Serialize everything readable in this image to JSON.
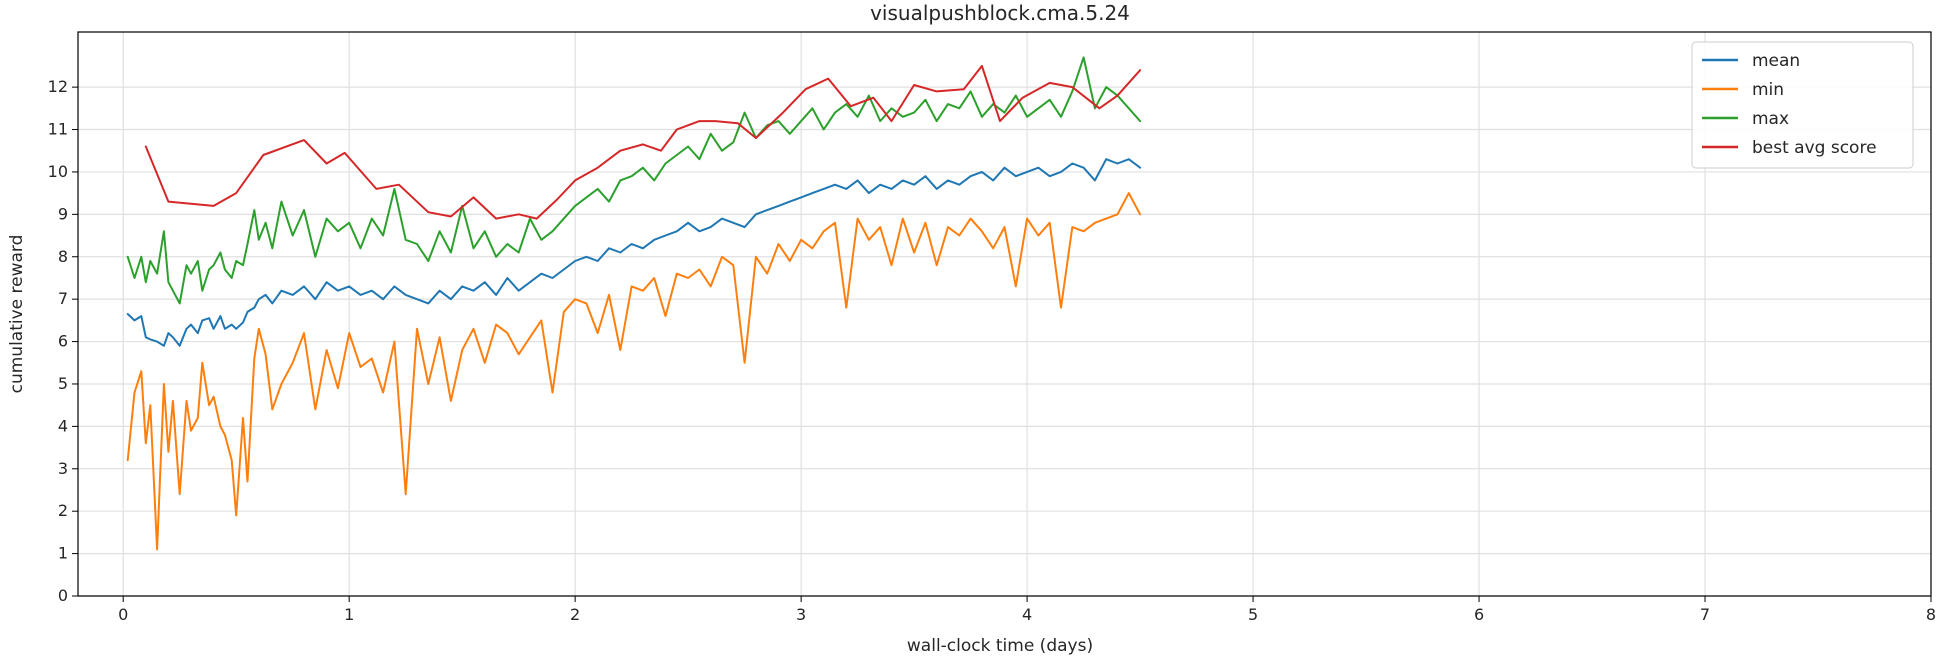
{
  "chart_data": {
    "type": "line",
    "title": "visualpushblock.cma.5.24",
    "xlabel": "wall-clock time (days)",
    "ylabel": "cumulative reward",
    "xlim": [
      -0.2,
      8
    ],
    "ylim": [
      0,
      13.3
    ],
    "xticks": [
      0,
      1,
      2,
      3,
      4,
      5,
      6,
      7,
      8
    ],
    "yticks": [
      0,
      1,
      2,
      3,
      4,
      5,
      6,
      7,
      8,
      9,
      10,
      11,
      12
    ],
    "grid": true,
    "legend_position": "top-right",
    "series": [
      {
        "name": "mean",
        "color": "#1f77b4",
        "x": [
          0.02,
          0.05,
          0.08,
          0.1,
          0.12,
          0.15,
          0.18,
          0.2,
          0.22,
          0.25,
          0.28,
          0.3,
          0.33,
          0.35,
          0.38,
          0.4,
          0.43,
          0.45,
          0.48,
          0.5,
          0.53,
          0.55,
          0.58,
          0.6,
          0.63,
          0.66,
          0.7,
          0.75,
          0.8,
          0.85,
          0.9,
          0.95,
          1.0,
          1.05,
          1.1,
          1.15,
          1.2,
          1.25,
          1.3,
          1.35,
          1.4,
          1.45,
          1.5,
          1.55,
          1.6,
          1.65,
          1.7,
          1.75,
          1.8,
          1.85,
          1.9,
          1.95,
          2.0,
          2.05,
          2.1,
          2.15,
          2.2,
          2.25,
          2.3,
          2.35,
          2.4,
          2.45,
          2.5,
          2.55,
          2.6,
          2.65,
          2.7,
          2.75,
          2.8,
          2.85,
          2.9,
          2.95,
          3.0,
          3.05,
          3.1,
          3.15,
          3.2,
          3.25,
          3.3,
          3.35,
          3.4,
          3.45,
          3.5,
          3.55,
          3.6,
          3.65,
          3.7,
          3.75,
          3.8,
          3.85,
          3.9,
          3.95,
          4.0,
          4.05,
          4.1,
          4.15,
          4.2,
          4.25,
          4.3,
          4.35,
          4.4,
          4.45,
          4.5
        ],
        "y": [
          6.65,
          6.5,
          6.6,
          6.1,
          6.05,
          6.0,
          5.9,
          6.2,
          6.1,
          5.9,
          6.3,
          6.4,
          6.2,
          6.5,
          6.55,
          6.3,
          6.6,
          6.3,
          6.4,
          6.3,
          6.45,
          6.7,
          6.8,
          7.0,
          7.1,
          6.9,
          7.2,
          7.1,
          7.3,
          7.0,
          7.4,
          7.2,
          7.3,
          7.1,
          7.2,
          7.0,
          7.3,
          7.1,
          7.0,
          6.9,
          7.2,
          7.0,
          7.3,
          7.2,
          7.4,
          7.1,
          7.5,
          7.2,
          7.4,
          7.6,
          7.5,
          7.7,
          7.9,
          8.0,
          7.9,
          8.2,
          8.1,
          8.3,
          8.2,
          8.4,
          8.5,
          8.6,
          8.8,
          8.6,
          8.7,
          8.9,
          8.8,
          8.7,
          9.0,
          9.1,
          9.2,
          9.3,
          9.4,
          9.5,
          9.6,
          9.7,
          9.6,
          9.8,
          9.5,
          9.7,
          9.6,
          9.8,
          9.7,
          9.9,
          9.6,
          9.8,
          9.7,
          9.9,
          10.0,
          9.8,
          10.1,
          9.9,
          10.0,
          10.1,
          9.9,
          10.0,
          10.2,
          10.1,
          9.8,
          10.3,
          10.2,
          10.3,
          10.1
        ]
      },
      {
        "name": "min",
        "color": "#ff7f0e",
        "x": [
          0.02,
          0.05,
          0.08,
          0.1,
          0.12,
          0.15,
          0.18,
          0.2,
          0.22,
          0.25,
          0.28,
          0.3,
          0.33,
          0.35,
          0.38,
          0.4,
          0.43,
          0.45,
          0.48,
          0.5,
          0.53,
          0.55,
          0.58,
          0.6,
          0.63,
          0.66,
          0.7,
          0.75,
          0.8,
          0.85,
          0.9,
          0.95,
          1.0,
          1.05,
          1.1,
          1.15,
          1.2,
          1.25,
          1.3,
          1.35,
          1.4,
          1.45,
          1.5,
          1.55,
          1.6,
          1.65,
          1.7,
          1.75,
          1.8,
          1.85,
          1.9,
          1.95,
          2.0,
          2.05,
          2.1,
          2.15,
          2.2,
          2.25,
          2.3,
          2.35,
          2.4,
          2.45,
          2.5,
          2.55,
          2.6,
          2.65,
          2.7,
          2.75,
          2.8,
          2.85,
          2.9,
          2.95,
          3.0,
          3.05,
          3.1,
          3.15,
          3.2,
          3.25,
          3.3,
          3.35,
          3.4,
          3.45,
          3.5,
          3.55,
          3.6,
          3.65,
          3.7,
          3.75,
          3.8,
          3.85,
          3.9,
          3.95,
          4.0,
          4.05,
          4.1,
          4.15,
          4.2,
          4.25,
          4.3,
          4.35,
          4.4,
          4.45,
          4.5
        ],
        "y": [
          3.2,
          4.8,
          5.3,
          3.6,
          4.5,
          1.1,
          5.0,
          3.4,
          4.6,
          2.4,
          4.6,
          3.9,
          4.2,
          5.5,
          4.5,
          4.7,
          4.0,
          3.8,
          3.2,
          1.9,
          4.2,
          2.7,
          5.6,
          6.3,
          5.7,
          4.4,
          5.0,
          5.5,
          6.2,
          4.4,
          5.8,
          4.9,
          6.2,
          5.4,
          5.6,
          4.8,
          6.0,
          2.4,
          6.3,
          5.0,
          6.1,
          4.6,
          5.8,
          6.3,
          5.5,
          6.4,
          6.2,
          5.7,
          6.1,
          6.5,
          4.8,
          6.7,
          7.0,
          6.9,
          6.2,
          7.1,
          5.8,
          7.3,
          7.2,
          7.5,
          6.6,
          7.6,
          7.5,
          7.7,
          7.3,
          8.0,
          7.8,
          5.5,
          8.0,
          7.6,
          8.3,
          7.9,
          8.4,
          8.2,
          8.6,
          8.8,
          6.8,
          8.9,
          8.4,
          8.7,
          7.8,
          8.9,
          8.1,
          8.8,
          7.8,
          8.7,
          8.5,
          8.9,
          8.6,
          8.2,
          8.7,
          7.3,
          8.9,
          8.5,
          8.8,
          6.8,
          8.7,
          8.6,
          8.8,
          8.9,
          9.0,
          9.5,
          9.0
        ]
      },
      {
        "name": "max",
        "color": "#2ca02c",
        "x": [
          0.02,
          0.05,
          0.08,
          0.1,
          0.12,
          0.15,
          0.18,
          0.2,
          0.22,
          0.25,
          0.28,
          0.3,
          0.33,
          0.35,
          0.38,
          0.4,
          0.43,
          0.45,
          0.48,
          0.5,
          0.53,
          0.55,
          0.58,
          0.6,
          0.63,
          0.66,
          0.7,
          0.75,
          0.8,
          0.85,
          0.9,
          0.95,
          1.0,
          1.05,
          1.1,
          1.15,
          1.2,
          1.25,
          1.3,
          1.35,
          1.4,
          1.45,
          1.5,
          1.55,
          1.6,
          1.65,
          1.7,
          1.75,
          1.8,
          1.85,
          1.9,
          1.95,
          2.0,
          2.05,
          2.1,
          2.15,
          2.2,
          2.25,
          2.3,
          2.35,
          2.4,
          2.45,
          2.5,
          2.55,
          2.6,
          2.65,
          2.7,
          2.75,
          2.8,
          2.85,
          2.9,
          2.95,
          3.0,
          3.05,
          3.1,
          3.15,
          3.2,
          3.25,
          3.3,
          3.35,
          3.4,
          3.45,
          3.5,
          3.55,
          3.6,
          3.65,
          3.7,
          3.75,
          3.8,
          3.85,
          3.9,
          3.95,
          4.0,
          4.05,
          4.1,
          4.15,
          4.2,
          4.25,
          4.3,
          4.35,
          4.4,
          4.45,
          4.5
        ],
        "y": [
          8.0,
          7.5,
          8.0,
          7.4,
          7.9,
          7.6,
          8.6,
          7.4,
          7.2,
          6.9,
          7.8,
          7.6,
          7.9,
          7.2,
          7.7,
          7.8,
          8.1,
          7.7,
          7.5,
          7.9,
          7.8,
          8.3,
          9.1,
          8.4,
          8.8,
          8.2,
          9.3,
          8.5,
          9.1,
          8.0,
          8.9,
          8.6,
          8.8,
          8.2,
          8.9,
          8.5,
          9.6,
          8.4,
          8.3,
          7.9,
          8.6,
          8.1,
          9.2,
          8.2,
          8.6,
          8.0,
          8.3,
          8.1,
          8.9,
          8.4,
          8.6,
          8.9,
          9.2,
          9.4,
          9.6,
          9.3,
          9.8,
          9.9,
          10.1,
          9.8,
          10.2,
          10.4,
          10.6,
          10.3,
          10.9,
          10.5,
          10.7,
          11.4,
          10.8,
          11.1,
          11.2,
          10.9,
          11.2,
          11.5,
          11.0,
          11.4,
          11.6,
          11.3,
          11.8,
          11.2,
          11.5,
          11.3,
          11.4,
          11.7,
          11.2,
          11.6,
          11.5,
          11.9,
          11.3,
          11.6,
          11.4,
          11.8,
          11.3,
          11.5,
          11.7,
          11.3,
          11.9,
          12.7,
          11.5,
          12.0,
          11.8,
          11.5,
          11.2
        ]
      },
      {
        "name": "best avg score",
        "color": "#d62728",
        "x": [
          0.1,
          0.2,
          0.4,
          0.5,
          0.62,
          0.8,
          0.9,
          0.98,
          1.12,
          1.22,
          1.35,
          1.45,
          1.55,
          1.65,
          1.75,
          1.83,
          1.92,
          2.0,
          2.1,
          2.2,
          2.3,
          2.38,
          2.45,
          2.55,
          2.62,
          2.72,
          2.8,
          2.92,
          3.02,
          3.12,
          3.22,
          3.32,
          3.4,
          3.5,
          3.6,
          3.72,
          3.8,
          3.88,
          3.98,
          4.1,
          4.2,
          4.32,
          4.4,
          4.5
        ],
        "y": [
          10.6,
          9.3,
          9.2,
          9.5,
          10.4,
          10.75,
          10.2,
          10.45,
          9.6,
          9.7,
          9.05,
          8.95,
          9.4,
          8.9,
          9.0,
          8.9,
          9.35,
          9.8,
          10.1,
          10.5,
          10.65,
          10.5,
          11.0,
          11.2,
          11.2,
          11.15,
          10.8,
          11.4,
          11.95,
          12.2,
          11.55,
          11.75,
          11.2,
          12.05,
          11.9,
          11.95,
          12.5,
          11.2,
          11.75,
          12.1,
          12.0,
          11.5,
          11.8,
          12.4
        ]
      }
    ]
  }
}
